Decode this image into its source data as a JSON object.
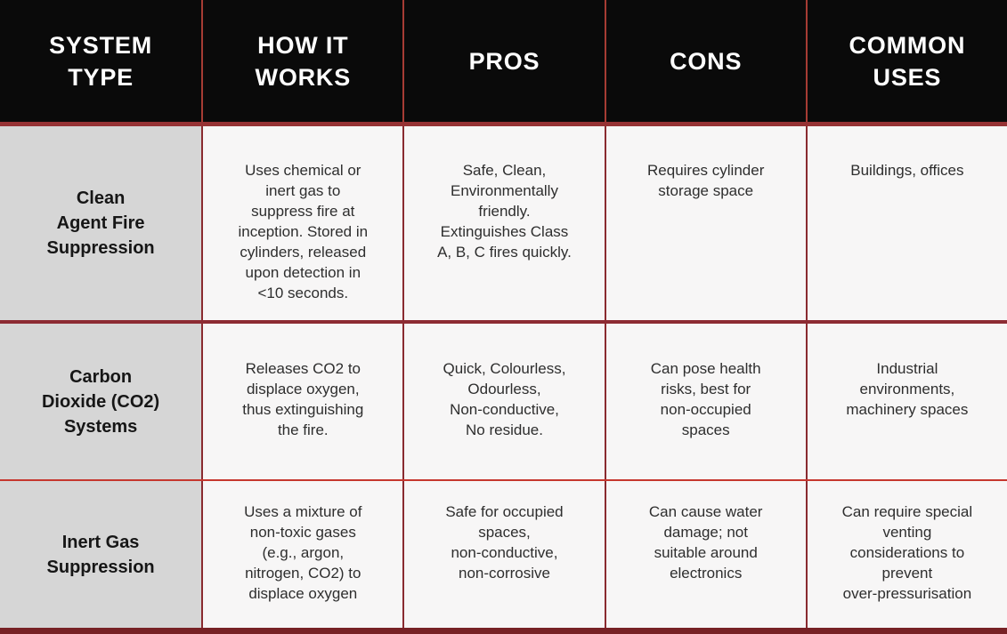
{
  "title": "Fire suppression system comparison table",
  "colors": {
    "header_bg": "#0a0a0a",
    "header_text": "#ffffff",
    "system_column_bg": "#d6d6d6",
    "cell_bg": "#f7f6f6",
    "header_divider": "#963234",
    "row_divider_dark": "#8d2b33",
    "row_divider_bright": "#c6372e",
    "bottom_border": "#772125",
    "vertical_line": "#8a2b30"
  },
  "header": {
    "system_type": "SYSTEM\nTYPE",
    "how_it_works": "HOW IT\nWORKS",
    "pros": "PROS",
    "cons": "CONS",
    "common_uses": "COMMON\nUSES"
  },
  "rows": [
    {
      "system_type": "Clean\nAgent Fire\nSuppression",
      "how_it_works": "Uses chemical or\ninert gas to\nsuppress fire at\ninception. Stored in\ncylinders, released\nupon detection in\n<10 seconds.",
      "pros": "Safe, Clean,\nEnvironmentally\nfriendly.\nExtinguishes Class\nA, B, C fires quickly.",
      "cons": "Requires cylinder\nstorage space",
      "common_uses": "Buildings, offices"
    },
    {
      "system_type": "Carbon\nDioxide (CO2)\nSystems",
      "how_it_works": "Releases CO2 to\ndisplace oxygen,\nthus extinguishing\nthe fire.",
      "pros": "Quick, Colourless,\nOdourless,\nNon-conductive,\nNo residue.",
      "cons": "Can pose health\nrisks, best for\nnon-occupied\nspaces",
      "common_uses": "Industrial\nenvironments,\nmachinery spaces"
    },
    {
      "system_type": "Inert Gas\nSuppression",
      "how_it_works": "Uses a mixture of\nnon-toxic gases\n(e.g., argon,\nnitrogen, CO2) to\ndisplace oxygen",
      "pros": "Safe for occupied\nspaces,\nnon-conductive,\nnon-corrosive",
      "cons": "Can cause water\ndamage; not\nsuitable around\nelectronics",
      "common_uses": "Can require special\nventing\nconsiderations to\nprevent\nover-pressurisation"
    }
  ],
  "chart_data": {
    "type": "table",
    "columns": [
      "SYSTEM TYPE",
      "HOW IT WORKS",
      "PROS",
      "CONS",
      "COMMON USES"
    ],
    "rows": [
      [
        "Clean Agent Fire Suppression",
        "Uses chemical or inert gas to suppress fire at inception. Stored in cylinders, released upon detection in <10 seconds.",
        "Safe, Clean, Environmentally friendly. Extinguishes Class A, B, C fires quickly.",
        "Requires cylinder storage space",
        "Buildings, offices"
      ],
      [
        "Carbon Dioxide (CO2) Systems",
        "Releases CO2 to displace oxygen, thus extinguishing the fire.",
        "Quick, Colourless, Odourless, Non-conductive, No residue.",
        "Can pose health risks, best for non-occupied spaces",
        "Industrial environments, machinery spaces"
      ],
      [
        "Inert Gas Suppression",
        "Uses a mixture of non-toxic gases (e.g., argon, nitrogen, CO2) to displace oxygen",
        "Safe for occupied spaces, non-conductive, non-corrosive",
        "Can cause water damage; not suitable around electronics",
        "Can require special venting considerations to prevent over-pressurisation"
      ]
    ]
  }
}
